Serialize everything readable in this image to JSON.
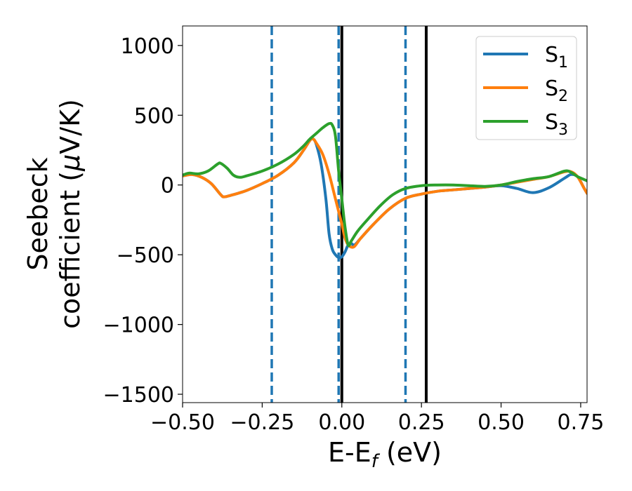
{
  "chart_data": {
    "type": "line",
    "xlabel": "E-E",
    "xlabel_sub": "f",
    "xlabel_unit": " (eV)",
    "ylabel_line1": "Seebeck",
    "ylabel_line2": "coefficient  (",
    "ylabel_mu": "μ",
    "ylabel_unit": "V/K)",
    "xlim": [
      -0.5,
      0.77
    ],
    "ylim": [
      -1560,
      1140
    ],
    "xticks": [
      -0.5,
      -0.25,
      0.0,
      0.25,
      0.5,
      0.75
    ],
    "xtick_labels": [
      "−0.50",
      "−0.25",
      "0.00",
      "0.25",
      "0.50",
      "0.75"
    ],
    "yticks": [
      1000,
      500,
      0,
      -500,
      -1000,
      -1500
    ],
    "ytick_labels": [
      "1000",
      "500",
      "0",
      "−500",
      "−1000",
      "−1500"
    ],
    "grid": false,
    "legend_position": "top-right",
    "series": [
      {
        "name": "S",
        "name_sub": "1",
        "color": "#1f77b4",
        "points": [
          [
            -0.5,
            65
          ],
          [
            -0.47,
            75
          ],
          [
            -0.44,
            55
          ],
          [
            -0.41,
            10
          ],
          [
            -0.38,
            -70
          ],
          [
            -0.37,
            -85
          ],
          [
            -0.35,
            -75
          ],
          [
            -0.3,
            -40
          ],
          [
            -0.25,
            10
          ],
          [
            -0.2,
            70
          ],
          [
            -0.15,
            160
          ],
          [
            -0.12,
            250
          ],
          [
            -0.1,
            320
          ],
          [
            -0.09,
            330
          ],
          [
            -0.08,
            290
          ],
          [
            -0.065,
            150
          ],
          [
            -0.05,
            -100
          ],
          [
            -0.04,
            -350
          ],
          [
            -0.03,
            -460
          ],
          [
            -0.02,
            -500
          ],
          [
            -0.01,
            -520
          ],
          [
            0.0,
            -515
          ],
          [
            0.01,
            -480
          ],
          [
            0.02,
            -430
          ],
          [
            0.03,
            -420
          ],
          [
            0.04,
            -430
          ],
          [
            0.06,
            -380
          ],
          [
            0.1,
            -280
          ],
          [
            0.15,
            -170
          ],
          [
            0.2,
            -95
          ],
          [
            0.25,
            -65
          ],
          [
            0.3,
            -45
          ],
          [
            0.35,
            -35
          ],
          [
            0.4,
            -25
          ],
          [
            0.45,
            -15
          ],
          [
            0.5,
            -5
          ],
          [
            0.55,
            -25
          ],
          [
            0.6,
            -55
          ],
          [
            0.65,
            -20
          ],
          [
            0.7,
            50
          ],
          [
            0.72,
            75
          ],
          [
            0.74,
            60
          ],
          [
            0.76,
            -20
          ],
          [
            0.77,
            -60
          ]
        ]
      },
      {
        "name": "S",
        "name_sub": "2",
        "color": "#ff7f0e",
        "points": [
          [
            -0.5,
            65
          ],
          [
            -0.47,
            75
          ],
          [
            -0.44,
            55
          ],
          [
            -0.41,
            10
          ],
          [
            -0.38,
            -70
          ],
          [
            -0.37,
            -85
          ],
          [
            -0.35,
            -75
          ],
          [
            -0.3,
            -40
          ],
          [
            -0.25,
            10
          ],
          [
            -0.2,
            70
          ],
          [
            -0.15,
            160
          ],
          [
            -0.12,
            250
          ],
          [
            -0.1,
            320
          ],
          [
            -0.09,
            330
          ],
          [
            -0.08,
            300
          ],
          [
            -0.06,
            220
          ],
          [
            -0.04,
            80
          ],
          [
            -0.02,
            -100
          ],
          [
            0.0,
            -280
          ],
          [
            0.01,
            -380
          ],
          [
            0.02,
            -430
          ],
          [
            0.03,
            -445
          ],
          [
            0.04,
            -440
          ],
          [
            0.06,
            -380
          ],
          [
            0.1,
            -280
          ],
          [
            0.15,
            -170
          ],
          [
            0.2,
            -95
          ],
          [
            0.25,
            -65
          ],
          [
            0.3,
            -45
          ],
          [
            0.35,
            -35
          ],
          [
            0.4,
            -25
          ],
          [
            0.45,
            -15
          ],
          [
            0.5,
            0
          ],
          [
            0.55,
            20
          ],
          [
            0.6,
            40
          ],
          [
            0.65,
            60
          ],
          [
            0.7,
            95
          ],
          [
            0.72,
            95
          ],
          [
            0.74,
            60
          ],
          [
            0.76,
            -20
          ],
          [
            0.77,
            -60
          ]
        ]
      },
      {
        "name": "S",
        "name_sub": "3",
        "color": "#2ca02c",
        "points": [
          [
            -0.5,
            70
          ],
          [
            -0.48,
            85
          ],
          [
            -0.45,
            80
          ],
          [
            -0.42,
            100
          ],
          [
            -0.39,
            150
          ],
          [
            -0.38,
            155
          ],
          [
            -0.36,
            120
          ],
          [
            -0.34,
            70
          ],
          [
            -0.32,
            55
          ],
          [
            -0.3,
            65
          ],
          [
            -0.25,
            100
          ],
          [
            -0.2,
            150
          ],
          [
            -0.15,
            220
          ],
          [
            -0.12,
            280
          ],
          [
            -0.1,
            330
          ],
          [
            -0.08,
            370
          ],
          [
            -0.06,
            410
          ],
          [
            -0.04,
            440
          ],
          [
            -0.03,
            430
          ],
          [
            -0.02,
            350
          ],
          [
            -0.01,
            100
          ],
          [
            0.0,
            -100
          ],
          [
            0.01,
            -300
          ],
          [
            0.02,
            -430
          ],
          [
            0.03,
            -400
          ],
          [
            0.05,
            -330
          ],
          [
            0.08,
            -250
          ],
          [
            0.12,
            -150
          ],
          [
            0.16,
            -70
          ],
          [
            0.2,
            -25
          ],
          [
            0.25,
            -5
          ],
          [
            0.3,
            0
          ],
          [
            0.35,
            0
          ],
          [
            0.4,
            -5
          ],
          [
            0.45,
            -10
          ],
          [
            0.5,
            0
          ],
          [
            0.55,
            25
          ],
          [
            0.6,
            45
          ],
          [
            0.65,
            60
          ],
          [
            0.7,
            100
          ],
          [
            0.72,
            90
          ],
          [
            0.74,
            60
          ],
          [
            0.76,
            40
          ],
          [
            0.77,
            30
          ]
        ]
      }
    ],
    "vlines": [
      {
        "x": -0.22,
        "style": "dashed",
        "color": "#1f77b4"
      },
      {
        "x": -0.01,
        "style": "dashed",
        "color": "#1f77b4"
      },
      {
        "x": 0.2,
        "style": "dashed",
        "color": "#1f77b4"
      },
      {
        "x": 0.0,
        "style": "solid",
        "color": "#000000"
      },
      {
        "x": 0.265,
        "style": "solid",
        "color": "#000000"
      }
    ]
  }
}
